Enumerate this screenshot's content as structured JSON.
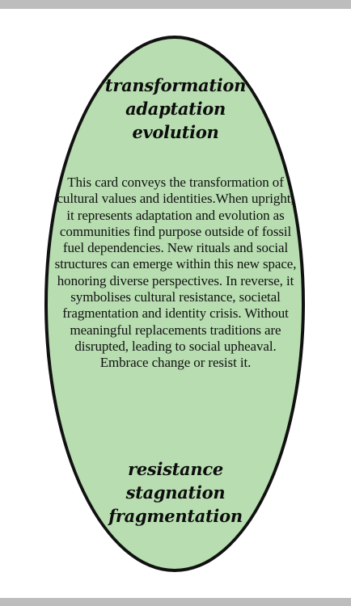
{
  "card": {
    "upright_keywords": [
      "transformation",
      "adaptation",
      "evolution"
    ],
    "description": "This card conveys the transformation of cultural values and identities.When upright, it represents adaptation and evolution as communities find purpose outside of fossil fuel dependencies. New rituals and social structures can emerge within this new space, honoring diverse perspectives. In reverse, it symbolises cultural resistance, societal fragmentation and identity crisis. Without meaningful replacements traditions are disrupted, leading to social upheaval. Embrace change or resist it.",
    "reversed_keywords": [
      "resistance",
      "stagnation",
      "fragmentation"
    ]
  },
  "colors": {
    "card_fill": "#b7ddb0",
    "card_border": "#111111",
    "frame_bar": "#bdbdbd"
  }
}
